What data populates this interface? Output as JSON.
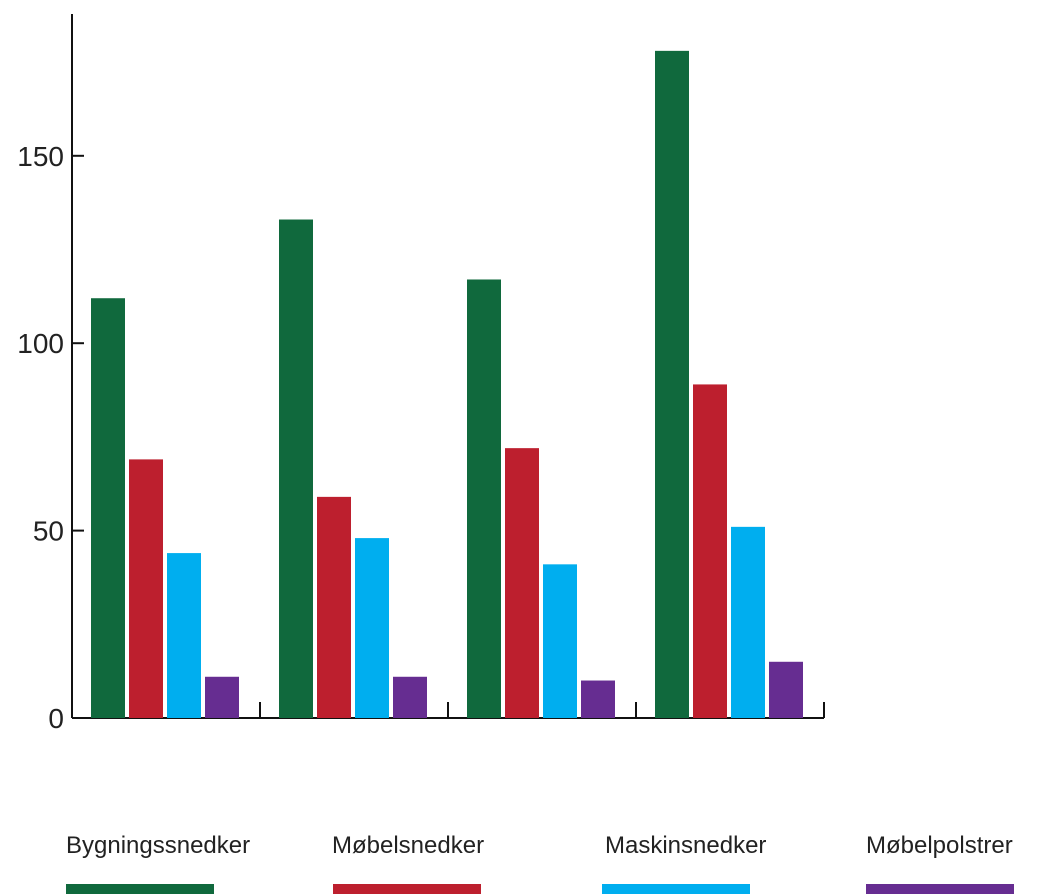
{
  "chart_data": {
    "type": "bar",
    "title": "",
    "xlabel": "",
    "ylabel": "",
    "ylim": [
      0,
      185
    ],
    "yticks": [
      "0",
      "50",
      "100",
      "150"
    ],
    "categories": [
      "",
      "",
      "",
      ""
    ],
    "series": [
      {
        "name": "Bygningssnedker",
        "color": "#10693d",
        "values": [
          112,
          133,
          117,
          178
        ]
      },
      {
        "name": "Møbelsnedker",
        "color": "#bd1f2e",
        "values": [
          69,
          59,
          72,
          89
        ]
      },
      {
        "name": "Maskinsnedker",
        "color": "#00aeef",
        "values": [
          44,
          48,
          41,
          51
        ]
      },
      {
        "name": "Møbelpolstrer",
        "color": "#662d91",
        "values": [
          11,
          11,
          10,
          15
        ]
      }
    ],
    "grid": false,
    "legend": "bottom"
  }
}
